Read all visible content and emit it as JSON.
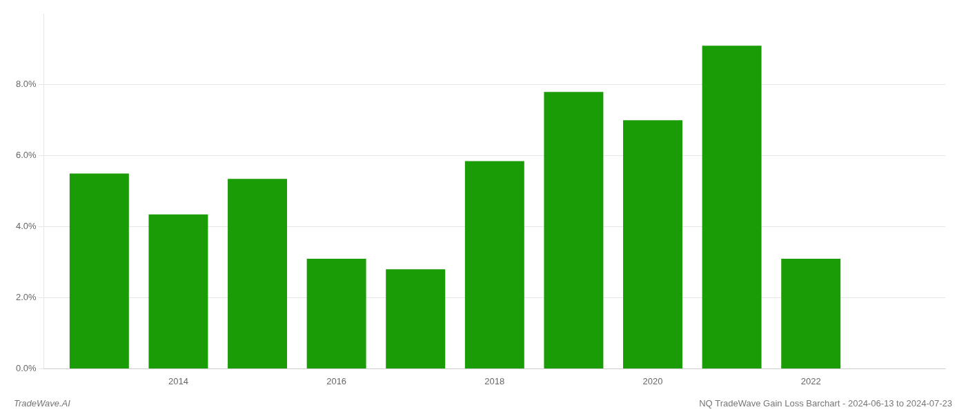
{
  "chart_data": {
    "type": "bar",
    "x": [
      2013,
      2014,
      2015,
      2016,
      2017,
      2018,
      2019,
      2020,
      2021,
      2022
    ],
    "values": [
      0.055,
      0.0435,
      0.0535,
      0.031,
      0.028,
      0.0585,
      0.078,
      0.07,
      0.091,
      0.031
    ],
    "color": "#1a9c06",
    "xlim": [
      2012.3,
      2023.7
    ],
    "xticks": [
      2014,
      2016,
      2018,
      2020,
      2022
    ],
    "ylim": [
      0,
      0.1
    ],
    "yticks": [
      {
        "value": 0.0,
        "label": "0.0%"
      },
      {
        "value": 0.02,
        "label": "2.0%"
      },
      {
        "value": 0.04,
        "label": "4.0%"
      },
      {
        "value": 0.06,
        "label": "6.0%"
      },
      {
        "value": 0.08,
        "label": "8.0%"
      }
    ],
    "grid": true,
    "annotations": [
      "TradeWave.AI",
      "NQ TradeWave Gain Loss Barchart - 2024-06-13 to 2024-07-23"
    ]
  }
}
